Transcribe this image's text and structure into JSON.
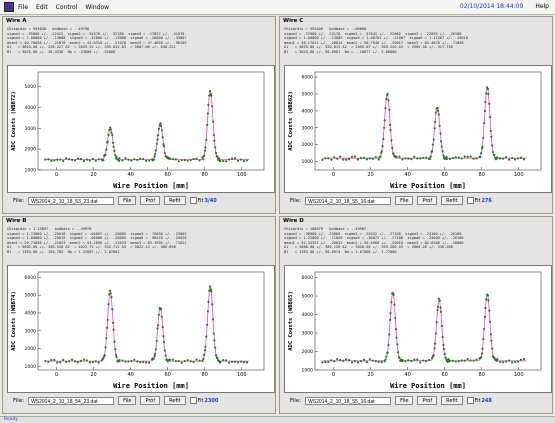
{
  "menu": {
    "items": [
      "File",
      "Edit",
      "Control",
      "Window"
    ],
    "datetime": "02/10/2014 18:44:09",
    "help": "Help"
  },
  "panels": [
    {
      "title": "Wire A",
      "header": "Chisqrdiv = 592048   bndbase = -.49798",
      "params": [
        "sigma1 = .95000 +/- .22422  sigma2 = .54378 +/- .52180  sigma3 = .17827 +/- .41578",
        "sigma4 = 1.00000 +/- .13088  sigma5 = .42000 +/- .13088  sigma6 = .20000 +/- .33087",
        "mean1 = 40.70058 +/- .21078  mean2 = 42.0310 +/- .21078  mean3 = 47.4658 +/- .90105",
        "A1   = 3025.00 +/- 226.227 A2  = 3025.25 +/- 285.012 A3  = 5007.00 +/- 640.221",
        "B1   = 3025.00 +/- 36.4336  Bo = .23000 +/- .25000"
      ],
      "ylabel": "ADC Counts (WBB72)",
      "xlabel": "Wire Position [mm]",
      "file_label": "File:",
      "file_value": "WS2014_2_10_18_53_23.dat",
      "file_btn": "File",
      "prof_btn": "Prof",
      "refit_btn": "Refit",
      "fit_label": "Fit",
      "count": "3/40",
      "chart_data": {
        "type": "scatter",
        "xlim": [
          -10,
          112
        ],
        "ylim": [
          1000,
          5700
        ],
        "xticks": [
          0,
          20,
          40,
          60,
          80,
          100
        ],
        "yticks": [
          1000,
          2000,
          3000,
          4000,
          5000
        ],
        "baseline": 1500,
        "peaks": [
          [
            29,
            3000
          ],
          [
            56,
            3200
          ],
          [
            83,
            4800
          ]
        ]
      }
    },
    {
      "title": "Wire C",
      "header": "Chisqrdiv = 592048   bndbase = -.06000",
      "params": [
        "sigma1 = .37000 +/- .24178  sigma2 = .37841 +/- .22062  sigma3 = .22099 +/- .26180",
        "sigma4 = 1.00000 +/- .13085  sigma5 = 1.00784 +/- .21007  sigma6 = 1.11587 +/- .26018",
        "mean1 = 38.17011 +/- .20014  mean2 = 56.7940 +/- .20017  mean3 = 83.4870 +/- .71058",
        "A1   = 3025.00 +/- 320.012 A2  = 2055.07 +/- 303.240 A3  = 2505.38 +/- 317.730",
        "B1   = 3025.00 +/- 90.8981  Bo = -.10077 +/- 2.06000"
      ],
      "ylabel": "ADC Counts (WBB62)",
      "xlabel": "Wire Position [mm]",
      "file_label": "File:",
      "file_value": "WS2014_2_10_18_55_16.dat",
      "file_btn": "File",
      "prof_btn": "Prof",
      "refit_btn": "Refit",
      "fit_label": "Fit",
      "count": "276",
      "chart_data": {
        "type": "scatter",
        "xlim": [
          -10,
          112
        ],
        "ylim": [
          500,
          6300
        ],
        "xticks": [
          0,
          20,
          40,
          60,
          80,
          100
        ],
        "yticks": [
          1000,
          2000,
          3000,
          4000,
          5000,
          6000
        ],
        "baseline": 1200,
        "peaks": [
          [
            29,
            5000
          ],
          [
            56,
            4200
          ],
          [
            83,
            5400
          ]
        ]
      }
    },
    {
      "title": "Wire B",
      "header": "Chisqrdiv = 1.13897   bndbase = -.49978",
      "params": [
        "sigma1 = 1.21000 +/- .25010  sigma2 = .04607 +/- .28085  sigma3 = .75050 +/- .23001",
        "sigma4 = 1.00000 +/- .25019  sigma5 = .06000 +/- .28085  sigma6 = .96470 +/- .25026",
        "mean1 = 29.71056 +/- .21023  mean2 = 53.2896 +/- .21033  mean3 = 85.1995 +/- .71021",
        "A1   = 5002.00 +/- 350.520 A2  = 4022.75 +/- 332.712 A3  = 5822.14 +/- 406.698",
        "B1   = 1383.00 +/- 150.782  Bo = 1.47007 +/- 2.07002"
      ],
      "ylabel": "ADC Counts (WBB74)",
      "xlabel": "Wire Position [mm]",
      "file_label": "File:",
      "file_value": "WS2014_2_10_18_54_23.dat",
      "file_btn": "File",
      "prof_btn": "Prof",
      "refit_btn": "Refit",
      "fit_label": "Fit",
      "count": "2300",
      "chart_data": {
        "type": "scatter",
        "xlim": [
          -10,
          112
        ],
        "ylim": [
          800,
          6300
        ],
        "xticks": [
          0,
          20,
          40,
          60,
          80,
          100
        ],
        "yticks": [
          1000,
          2000,
          3000,
          4000,
          5000,
          6000
        ],
        "baseline": 1300,
        "peaks": [
          [
            29,
            5200
          ],
          [
            56,
            4300
          ],
          [
            83,
            5500
          ]
        ]
      }
    },
    {
      "title": "Wire D",
      "header": "Chisqrdiv = 108079   bndbase = -.49987",
      "params": [
        "sigma1 = .36000 +/- .23000  sigma2 = .25452 +/- .27100  sigma3 = .24100 +/- .26160",
        "sigma4 = 1.22000 +/- .11020  sigma5 = .36072 +/- .27100  sigma6 = .24000 +/- .26166",
        "mean1 = 32.33331 +/- .20012  mean2 = 56.4960 +/- .20010  mean3 = 82.6580 +/- .20000",
        "A1   = 3086.00 +/- 385.126 A2  = 3026.50 +/- 355.200 A3  = 2860.28 +/- 336.288",
        "B1   = 1383.00 +/- 90.8974  Bo = 1.07008 +/- 1.77000"
      ],
      "ylabel": "ADC Counts (WBB65)",
      "xlabel": "Wire Position [mm]",
      "file_label": "File:",
      "file_value": "WS2014_2_10_18_55_16.dat",
      "file_btn": "File",
      "prof_btn": "Prof",
      "refit_btn": "Refit",
      "fit_label": "Fit",
      "count": "248",
      "chart_data": {
        "type": "scatter",
        "xlim": [
          -10,
          112
        ],
        "ylim": [
          1000,
          6300
        ],
        "xticks": [
          0,
          20,
          40,
          60,
          80,
          100
        ],
        "yticks": [
          1000,
          2000,
          3000,
          4000,
          5000,
          6000
        ],
        "baseline": 1500,
        "peaks": [
          [
            32,
            5200
          ],
          [
            57,
            4800
          ],
          [
            83,
            5100
          ]
        ]
      }
    }
  ],
  "status": {
    "text": "Ready"
  }
}
